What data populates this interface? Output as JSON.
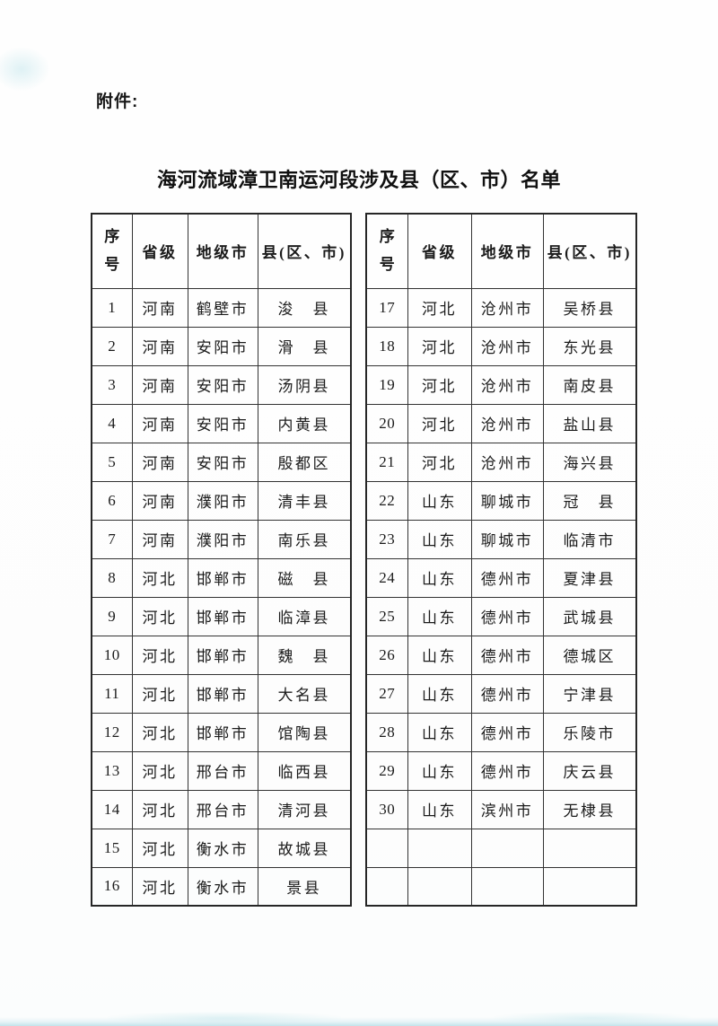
{
  "attachment_label": "附件:",
  "title": "海河流域漳卫南运河段涉及县（区、市）名单",
  "columns": [
    "序号",
    "省级",
    "地级市",
    "县(区、市)"
  ],
  "tables": [
    {
      "name": "left",
      "rows": [
        [
          "1",
          "河南",
          "鹤壁市",
          "浚　县"
        ],
        [
          "2",
          "河南",
          "安阳市",
          "滑　县"
        ],
        [
          "3",
          "河南",
          "安阳市",
          "汤阴县"
        ],
        [
          "4",
          "河南",
          "安阳市",
          "内黄县"
        ],
        [
          "5",
          "河南",
          "安阳市",
          "殷都区"
        ],
        [
          "6",
          "河南",
          "濮阳市",
          "清丰县"
        ],
        [
          "7",
          "河南",
          "濮阳市",
          "南乐县"
        ],
        [
          "8",
          "河北",
          "邯郸市",
          "磁　县"
        ],
        [
          "9",
          "河北",
          "邯郸市",
          "临漳县"
        ],
        [
          "10",
          "河北",
          "邯郸市",
          "魏　县"
        ],
        [
          "11",
          "河北",
          "邯郸市",
          "大名县"
        ],
        [
          "12",
          "河北",
          "邯郸市",
          "馆陶县"
        ],
        [
          "13",
          "河北",
          "邢台市",
          "临西县"
        ],
        [
          "14",
          "河北",
          "邢台市",
          "清河县"
        ],
        [
          "15",
          "河北",
          "衡水市",
          "故城县"
        ],
        [
          "16",
          "河北",
          "衡水市",
          "景县"
        ]
      ],
      "empty_rows": 0
    },
    {
      "name": "right",
      "rows": [
        [
          "17",
          "河北",
          "沧州市",
          "吴桥县"
        ],
        [
          "18",
          "河北",
          "沧州市",
          "东光县"
        ],
        [
          "19",
          "河北",
          "沧州市",
          "南皮县"
        ],
        [
          "20",
          "河北",
          "沧州市",
          "盐山县"
        ],
        [
          "21",
          "河北",
          "沧州市",
          "海兴县"
        ],
        [
          "22",
          "山东",
          "聊城市",
          "冠　县"
        ],
        [
          "23",
          "山东",
          "聊城市",
          "临清市"
        ],
        [
          "24",
          "山东",
          "德州市",
          "夏津县"
        ],
        [
          "25",
          "山东",
          "德州市",
          "武城县"
        ],
        [
          "26",
          "山东",
          "德州市",
          "德城区"
        ],
        [
          "27",
          "山东",
          "德州市",
          "宁津县"
        ],
        [
          "28",
          "山东",
          "德州市",
          "乐陵市"
        ],
        [
          "29",
          "山东",
          "德州市",
          "庆云县"
        ],
        [
          "30",
          "山东",
          "滨州市",
          "无棣县"
        ]
      ],
      "empty_rows": 2
    }
  ],
  "colors": {
    "text": "#1b1b1b",
    "border": "#333333",
    "outer_border": "#262626",
    "background": "#fdfdfd",
    "scan_fringe": "#94cddb"
  }
}
